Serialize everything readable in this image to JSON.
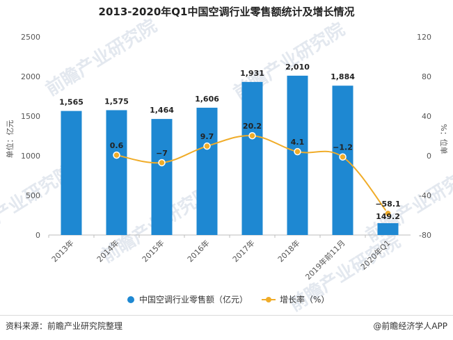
{
  "chart_data": {
    "type": "bar",
    "title": "2013-2020年Q1中国空调行业零售额统计及增长情况",
    "categories": [
      "2013年",
      "2014年",
      "2015年",
      "2016年",
      "2017年",
      "2018年",
      "2019年前11月",
      "2020年Q1"
    ],
    "series": [
      {
        "name": "中国空调行业零售额（亿元）",
        "type": "bar",
        "axis": "left",
        "color": "#1e88d2",
        "values": [
          1565,
          1575,
          1464,
          1606,
          1931,
          2010,
          1884,
          149.2
        ],
        "labels": [
          "1,565",
          "1,575",
          "1,464",
          "1,606",
          "1,931",
          "2,010",
          "1,884",
          "149.2"
        ]
      },
      {
        "name": "增长率（%）",
        "type": "line",
        "axis": "right",
        "color": "#f0ac28",
        "values": [
          null,
          0.6,
          -7,
          9.7,
          20.2,
          4.1,
          -1.2,
          -58.1
        ],
        "labels": [
          "",
          "0.6",
          "−7",
          "9.7",
          "20.2",
          "4.1",
          "−1.2",
          "−58.1"
        ]
      }
    ],
    "ylabel": "单位：亿元",
    "y2label": "%：位单",
    "ylim": [
      0,
      2500
    ],
    "y2lim": [
      -80,
      120
    ],
    "yticks": [
      "0",
      "500",
      "1000",
      "1500",
      "2000",
      "2500"
    ],
    "y2ticks": [
      "-80",
      "-40",
      "0",
      "40",
      "80",
      "120"
    ],
    "grid": false,
    "legend_position": "bottom"
  },
  "footer": {
    "source": "资料来源：前瞻产业研究院整理",
    "brand": "@前瞻经济学人APP"
  },
  "watermark": "前瞻产业研究院"
}
